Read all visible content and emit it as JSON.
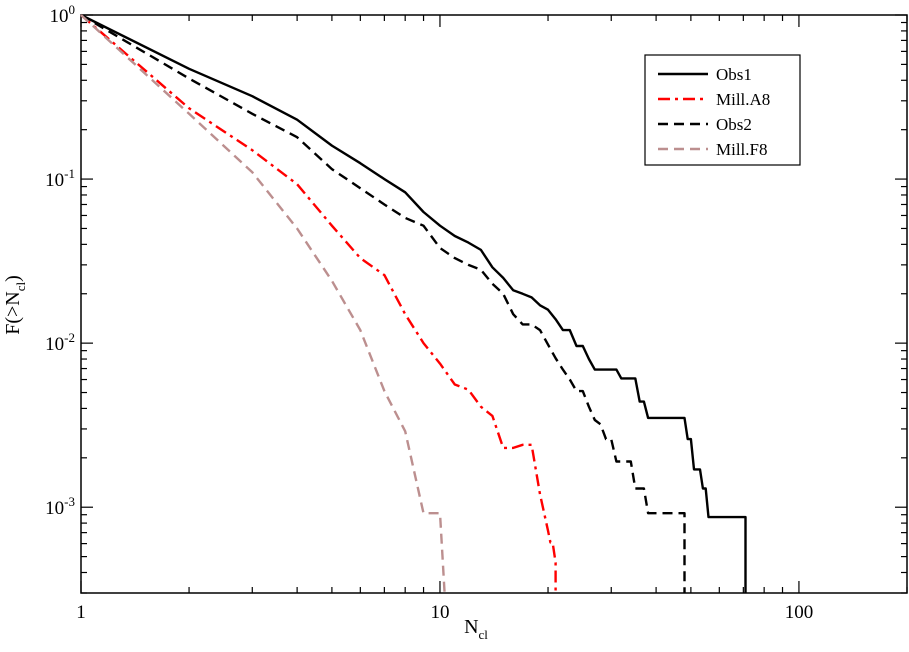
{
  "chart_data": {
    "type": "line",
    "title": "",
    "xlabel": "N",
    "xlabel_sub": "cl",
    "ylabel_prefix": "F(>N",
    "ylabel_sub": "cl",
    "ylabel_suffix": ")",
    "xscale": "log",
    "yscale": "log",
    "xlim": [
      1,
      200
    ],
    "ylim": [
      0.0003,
      1
    ],
    "grid": false,
    "legend_position": "top-right",
    "x_ticks": [
      {
        "value": 1,
        "label": "1"
      },
      {
        "value": 10,
        "label": "10"
      },
      {
        "value": 100,
        "label": "100"
      }
    ],
    "y_ticks": [
      {
        "value": 1,
        "base": "10",
        "exp": "0"
      },
      {
        "value": 0.1,
        "base": "10",
        "exp": "-1"
      },
      {
        "value": 0.01,
        "base": "10",
        "exp": "-2"
      },
      {
        "value": 0.001,
        "base": "10",
        "exp": "-3"
      }
    ],
    "series": [
      {
        "name": "Obs1",
        "color": "#000000",
        "dash": "solid",
        "points": [
          [
            1,
            1
          ],
          [
            2,
            0.47
          ],
          [
            3,
            0.32
          ],
          [
            4,
            0.23
          ],
          [
            5,
            0.16
          ],
          [
            6,
            0.125
          ],
          [
            7,
            0.1
          ],
          [
            8,
            0.083
          ],
          [
            9,
            0.063
          ],
          [
            10,
            0.052
          ],
          [
            11,
            0.045
          ],
          [
            12,
            0.041
          ],
          [
            13,
            0.037
          ],
          [
            14,
            0.029
          ],
          [
            15,
            0.025
          ],
          [
            16,
            0.021
          ],
          [
            17,
            0.02
          ],
          [
            18,
            0.019
          ],
          [
            19,
            0.017
          ],
          [
            20,
            0.016
          ],
          [
            21,
            0.014
          ],
          [
            22,
            0.012
          ],
          [
            23,
            0.012
          ],
          [
            24,
            0.0096
          ],
          [
            25,
            0.0096
          ],
          [
            26,
            0.008
          ],
          [
            27,
            0.0069
          ],
          [
            28,
            0.0069
          ],
          [
            31,
            0.0069
          ],
          [
            32,
            0.0061
          ],
          [
            35,
            0.0061
          ],
          [
            36,
            0.0044
          ],
          [
            37,
            0.0044
          ],
          [
            38,
            0.0035
          ],
          [
            39,
            0.0035
          ],
          [
            48,
            0.0035
          ],
          [
            49,
            0.0026
          ],
          [
            50,
            0.0026
          ],
          [
            51,
            0.0017
          ],
          [
            53,
            0.0017
          ],
          [
            54,
            0.0013
          ],
          [
            55,
            0.0013
          ],
          [
            56,
            0.00087
          ],
          [
            71,
            0.00087
          ],
          [
            71,
            0.0003
          ]
        ]
      },
      {
        "name": "Mill.A8",
        "color": "#ff0000",
        "dash": "dashdot",
        "points": [
          [
            1,
            1
          ],
          [
            2,
            0.27
          ],
          [
            3,
            0.15
          ],
          [
            4,
            0.093
          ],
          [
            5,
            0.052
          ],
          [
            6,
            0.033
          ],
          [
            7,
            0.026
          ],
          [
            8,
            0.015
          ],
          [
            9,
            0.01
          ],
          [
            10,
            0.0075
          ],
          [
            11,
            0.0056
          ],
          [
            12,
            0.0052
          ],
          [
            13,
            0.0041
          ],
          [
            14,
            0.0036
          ],
          [
            15,
            0.0023
          ],
          [
            16,
            0.0023
          ],
          [
            17,
            0.0024
          ],
          [
            18,
            0.0024
          ],
          [
            19,
            0.0012
          ],
          [
            20,
            0.00072
          ],
          [
            20.3,
            0.00061
          ],
          [
            20.6,
            0.00061
          ],
          [
            21,
            0.00046
          ],
          [
            21,
            0.0003
          ]
        ]
      },
      {
        "name": "Obs2",
        "color": "#000000",
        "dash": "dashed",
        "points": [
          [
            1,
            1
          ],
          [
            2,
            0.41
          ],
          [
            3,
            0.25
          ],
          [
            4,
            0.18
          ],
          [
            5,
            0.115
          ],
          [
            6,
            0.088
          ],
          [
            7,
            0.07
          ],
          [
            8,
            0.058
          ],
          [
            9,
            0.052
          ],
          [
            10,
            0.038
          ],
          [
            11,
            0.033
          ],
          [
            12,
            0.03
          ],
          [
            13,
            0.028
          ],
          [
            14,
            0.023
          ],
          [
            15,
            0.02
          ],
          [
            16,
            0.015
          ],
          [
            17,
            0.013
          ],
          [
            18,
            0.013
          ],
          [
            19,
            0.012
          ],
          [
            20,
            0.0098
          ],
          [
            21,
            0.0081
          ],
          [
            22,
            0.0069
          ],
          [
            23,
            0.006
          ],
          [
            24,
            0.0051
          ],
          [
            25,
            0.0051
          ],
          [
            26,
            0.0041
          ],
          [
            27,
            0.0034
          ],
          [
            28,
            0.0032
          ],
          [
            29,
            0.0026
          ],
          [
            30,
            0.0026
          ],
          [
            31,
            0.0019
          ],
          [
            34,
            0.0019
          ],
          [
            35,
            0.0013
          ],
          [
            37,
            0.0013
          ],
          [
            38,
            0.00092
          ],
          [
            48,
            0.00092
          ],
          [
            48,
            0.0003
          ]
        ]
      },
      {
        "name": "Mill.F8",
        "color": "#bc8f8f",
        "dash": "dashed",
        "points": [
          [
            1,
            1
          ],
          [
            2,
            0.25
          ],
          [
            3,
            0.11
          ],
          [
            4,
            0.05
          ],
          [
            5,
            0.024
          ],
          [
            6,
            0.012
          ],
          [
            7,
            0.0051
          ],
          [
            8,
            0.0029
          ],
          [
            9,
            0.00092
          ],
          [
            10,
            0.00092
          ],
          [
            10.3,
            0.0003
          ]
        ]
      }
    ]
  }
}
